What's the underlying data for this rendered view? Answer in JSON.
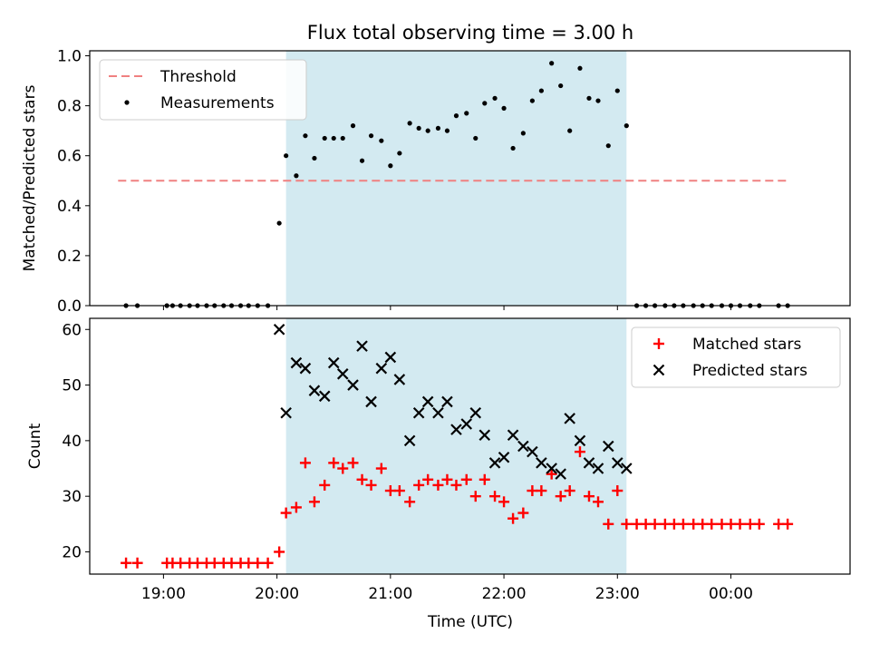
{
  "figure": {
    "title": "Flux total observing time = 3.00 h",
    "xlabel": "Time (UTC)",
    "x_ticks": [
      "19:00",
      "20:00",
      "21:00",
      "22:00",
      "23:00",
      "00:00"
    ],
    "x_tick_values_hours": [
      19,
      20,
      21,
      22,
      23,
      24
    ],
    "xlim_hours": [
      18.35,
      25.05
    ],
    "observing_window_hours": [
      20.08,
      23.08
    ],
    "window_color": "#d3eaf1"
  },
  "chart_data": [
    {
      "type": "scatter",
      "ylabel": "Matched/Predicted stars",
      "ylim": [
        0,
        1.02
      ],
      "y_ticks": [
        0.0,
        0.2,
        0.4,
        0.6,
        0.8,
        1.0
      ],
      "y_tick_labels": [
        "0.0",
        "0.2",
        "0.4",
        "0.6",
        "0.8",
        "1.0"
      ],
      "legend_position": "upper-left",
      "threshold": {
        "name": "Threshold",
        "value": 0.5,
        "x_range": [
          18.6,
          24.5
        ],
        "color": "#f08080"
      },
      "series": [
        {
          "name": "Measurements",
          "color": "#000000",
          "points": [
            [
              18.67,
              0
            ],
            [
              18.77,
              0
            ],
            [
              19.03,
              0
            ],
            [
              19.08,
              0
            ],
            [
              19.15,
              0
            ],
            [
              19.23,
              0
            ],
            [
              19.3,
              0
            ],
            [
              19.38,
              0
            ],
            [
              19.45,
              0
            ],
            [
              19.53,
              0
            ],
            [
              19.6,
              0
            ],
            [
              19.68,
              0
            ],
            [
              19.75,
              0
            ],
            [
              19.83,
              0
            ],
            [
              19.92,
              0
            ],
            [
              20.02,
              0.33
            ],
            [
              20.08,
              0.6
            ],
            [
              20.17,
              0.52
            ],
            [
              20.25,
              0.68
            ],
            [
              20.33,
              0.59
            ],
            [
              20.42,
              0.67
            ],
            [
              20.5,
              0.67
            ],
            [
              20.58,
              0.67
            ],
            [
              20.67,
              0.72
            ],
            [
              20.75,
              0.58
            ],
            [
              20.83,
              0.68
            ],
            [
              20.92,
              0.66
            ],
            [
              21.0,
              0.56
            ],
            [
              21.08,
              0.61
            ],
            [
              21.17,
              0.73
            ],
            [
              21.25,
              0.71
            ],
            [
              21.33,
              0.7
            ],
            [
              21.42,
              0.71
            ],
            [
              21.5,
              0.7
            ],
            [
              21.58,
              0.76
            ],
            [
              21.67,
              0.77
            ],
            [
              21.75,
              0.67
            ],
            [
              21.83,
              0.81
            ],
            [
              21.92,
              0.83
            ],
            [
              22.0,
              0.79
            ],
            [
              22.08,
              0.63
            ],
            [
              22.17,
              0.69
            ],
            [
              22.25,
              0.82
            ],
            [
              22.33,
              0.86
            ],
            [
              22.42,
              0.97
            ],
            [
              22.5,
              0.88
            ],
            [
              22.58,
              0.7
            ],
            [
              22.67,
              0.95
            ],
            [
              22.75,
              0.83
            ],
            [
              22.83,
              0.82
            ],
            [
              22.92,
              0.64
            ],
            [
              23.0,
              0.86
            ],
            [
              23.08,
              0.72
            ],
            [
              23.17,
              0
            ],
            [
              23.25,
              0
            ],
            [
              23.33,
              0
            ],
            [
              23.42,
              0
            ],
            [
              23.5,
              0
            ],
            [
              23.58,
              0
            ],
            [
              23.67,
              0
            ],
            [
              23.75,
              0
            ],
            [
              23.83,
              0
            ],
            [
              23.92,
              0
            ],
            [
              24.0,
              0
            ],
            [
              24.08,
              0
            ],
            [
              24.17,
              0
            ],
            [
              24.25,
              0
            ],
            [
              24.42,
              0
            ],
            [
              24.5,
              0
            ]
          ]
        }
      ]
    },
    {
      "type": "scatter",
      "ylabel": "Count",
      "ylim": [
        16,
        62
      ],
      "y_ticks": [
        20,
        30,
        40,
        50,
        60
      ],
      "y_tick_labels": [
        "20",
        "30",
        "40",
        "50",
        "60"
      ],
      "legend_position": "upper-right",
      "series": [
        {
          "name": "Matched stars",
          "marker": "plus",
          "color": "#ff0000",
          "points": [
            [
              18.67,
              18
            ],
            [
              18.77,
              18
            ],
            [
              19.03,
              18
            ],
            [
              19.08,
              18
            ],
            [
              19.15,
              18
            ],
            [
              19.23,
              18
            ],
            [
              19.3,
              18
            ],
            [
              19.38,
              18
            ],
            [
              19.45,
              18
            ],
            [
              19.53,
              18
            ],
            [
              19.6,
              18
            ],
            [
              19.68,
              18
            ],
            [
              19.75,
              18
            ],
            [
              19.83,
              18
            ],
            [
              19.92,
              18
            ],
            [
              20.02,
              20
            ],
            [
              20.08,
              27
            ],
            [
              20.17,
              28
            ],
            [
              20.25,
              36
            ],
            [
              20.33,
              29
            ],
            [
              20.42,
              32
            ],
            [
              20.5,
              36
            ],
            [
              20.58,
              35
            ],
            [
              20.67,
              36
            ],
            [
              20.75,
              33
            ],
            [
              20.83,
              32
            ],
            [
              20.92,
              35
            ],
            [
              21.0,
              31
            ],
            [
              21.08,
              31
            ],
            [
              21.17,
              29
            ],
            [
              21.25,
              32
            ],
            [
              21.33,
              33
            ],
            [
              21.42,
              32
            ],
            [
              21.5,
              33
            ],
            [
              21.58,
              32
            ],
            [
              21.67,
              33
            ],
            [
              21.75,
              30
            ],
            [
              21.83,
              33
            ],
            [
              21.92,
              30
            ],
            [
              22.0,
              29
            ],
            [
              22.08,
              26
            ],
            [
              22.17,
              27
            ],
            [
              22.25,
              31
            ],
            [
              22.33,
              31
            ],
            [
              22.42,
              34
            ],
            [
              22.5,
              30
            ],
            [
              22.58,
              31
            ],
            [
              22.67,
              38
            ],
            [
              22.75,
              30
            ],
            [
              22.83,
              29
            ],
            [
              22.92,
              25
            ],
            [
              23.0,
              31
            ],
            [
              23.08,
              25
            ],
            [
              23.17,
              25
            ],
            [
              23.25,
              25
            ],
            [
              23.33,
              25
            ],
            [
              23.42,
              25
            ],
            [
              23.5,
              25
            ],
            [
              23.58,
              25
            ],
            [
              23.67,
              25
            ],
            [
              23.75,
              25
            ],
            [
              23.83,
              25
            ],
            [
              23.92,
              25
            ],
            [
              24.0,
              25
            ],
            [
              24.08,
              25
            ],
            [
              24.17,
              25
            ],
            [
              24.25,
              25
            ],
            [
              24.42,
              25
            ],
            [
              24.5,
              25
            ]
          ]
        },
        {
          "name": "Predicted stars",
          "marker": "x",
          "color": "#000000",
          "points": [
            [
              20.02,
              60
            ],
            [
              20.08,
              45
            ],
            [
              20.17,
              54
            ],
            [
              20.25,
              53
            ],
            [
              20.33,
              49
            ],
            [
              20.42,
              48
            ],
            [
              20.5,
              54
            ],
            [
              20.58,
              52
            ],
            [
              20.67,
              50
            ],
            [
              20.75,
              57
            ],
            [
              20.83,
              47
            ],
            [
              20.92,
              53
            ],
            [
              21.0,
              55
            ],
            [
              21.08,
              51
            ],
            [
              21.17,
              40
            ],
            [
              21.25,
              45
            ],
            [
              21.33,
              47
            ],
            [
              21.42,
              45
            ],
            [
              21.5,
              47
            ],
            [
              21.58,
              42
            ],
            [
              21.67,
              43
            ],
            [
              21.75,
              45
            ],
            [
              21.83,
              41
            ],
            [
              21.92,
              36
            ],
            [
              22.0,
              37
            ],
            [
              22.08,
              41
            ],
            [
              22.17,
              39
            ],
            [
              22.25,
              38
            ],
            [
              22.33,
              36
            ],
            [
              22.42,
              35
            ],
            [
              22.5,
              34
            ],
            [
              22.58,
              44
            ],
            [
              22.67,
              40
            ],
            [
              22.75,
              36
            ],
            [
              22.83,
              35
            ],
            [
              22.92,
              39
            ],
            [
              23.0,
              36
            ],
            [
              23.08,
              35
            ]
          ]
        }
      ]
    }
  ]
}
